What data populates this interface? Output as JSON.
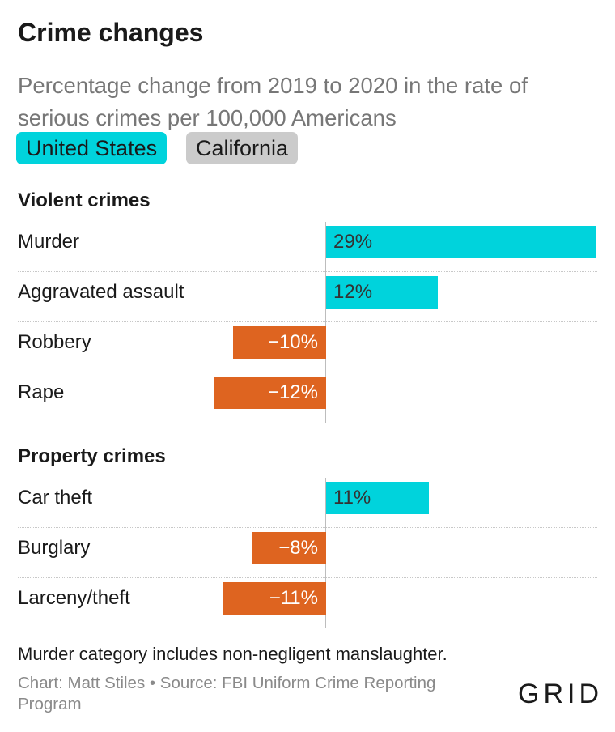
{
  "title": "Crime changes",
  "subtitle": "Percentage change from 2019 to 2020 in the rate of serious crimes per 100,000 Americans",
  "toggles": {
    "us": "United States",
    "ca": "California"
  },
  "note": "Murder category includes non-negligent manslaughter.",
  "credit": "Chart: Matt Stiles • Source: FBI Uniform Crime Reporting Program",
  "logo": "GRID",
  "colors": {
    "positive": "#00d3dc",
    "negative": "#de6420",
    "toggle_active": "#00d3dc",
    "toggle_inactive": "#cbcbcb"
  },
  "chart_data": {
    "type": "bar",
    "orientation": "horizontal",
    "selected": "United States",
    "groups": [
      {
        "name": "Violent crimes",
        "categories": [
          "Murder",
          "Aggravated assault",
          "Robbery",
          "Rape"
        ],
        "values": [
          29,
          12,
          -10,
          -12
        ],
        "labels": [
          "29%",
          "12%",
          "−10%",
          "−12%"
        ]
      },
      {
        "name": "Property crimes",
        "categories": [
          "Car theft",
          "Burglary",
          "Larceny/theft"
        ],
        "values": [
          11,
          -8,
          -11
        ],
        "labels": [
          "11%",
          "−8%",
          "−11%"
        ]
      }
    ],
    "xlim": [
      -12,
      29
    ]
  }
}
